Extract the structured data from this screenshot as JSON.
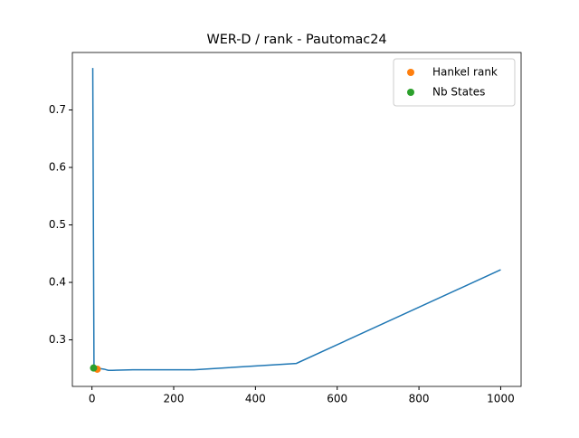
{
  "chart_data": {
    "type": "line",
    "title": "WER-D / rank - Pautomac24",
    "x": [
      2,
      5,
      10,
      20,
      30,
      40,
      50,
      100,
      250,
      500,
      1000
    ],
    "series": [
      {
        "name": null,
        "color": "#1f77b4",
        "kind": "line",
        "x": [
          2,
          5,
          10,
          20,
          30,
          40,
          50,
          100,
          250,
          500,
          1000
        ],
        "values": [
          0.773,
          0.25,
          0.25,
          0.25,
          0.249,
          0.247,
          0.247,
          0.248,
          0.248,
          0.259,
          0.422
        ]
      },
      {
        "name": "Hankel rank",
        "color": "#ff7f0e",
        "kind": "scatter",
        "x": [
          13
        ],
        "values": [
          0.249
        ]
      },
      {
        "name": "Nb States",
        "color": "#2ca02c",
        "kind": "scatter",
        "x": [
          4
        ],
        "values": [
          0.251
        ]
      }
    ],
    "xlim": [
      -47.9,
      1049.9
    ],
    "xticks": [
      0,
      200,
      400,
      600,
      800,
      1000
    ],
    "ylim": [
      0.219,
      0.8
    ],
    "yticks": [
      0.3,
      0.4,
      0.5,
      0.6,
      0.7
    ],
    "legend": "upper right"
  }
}
